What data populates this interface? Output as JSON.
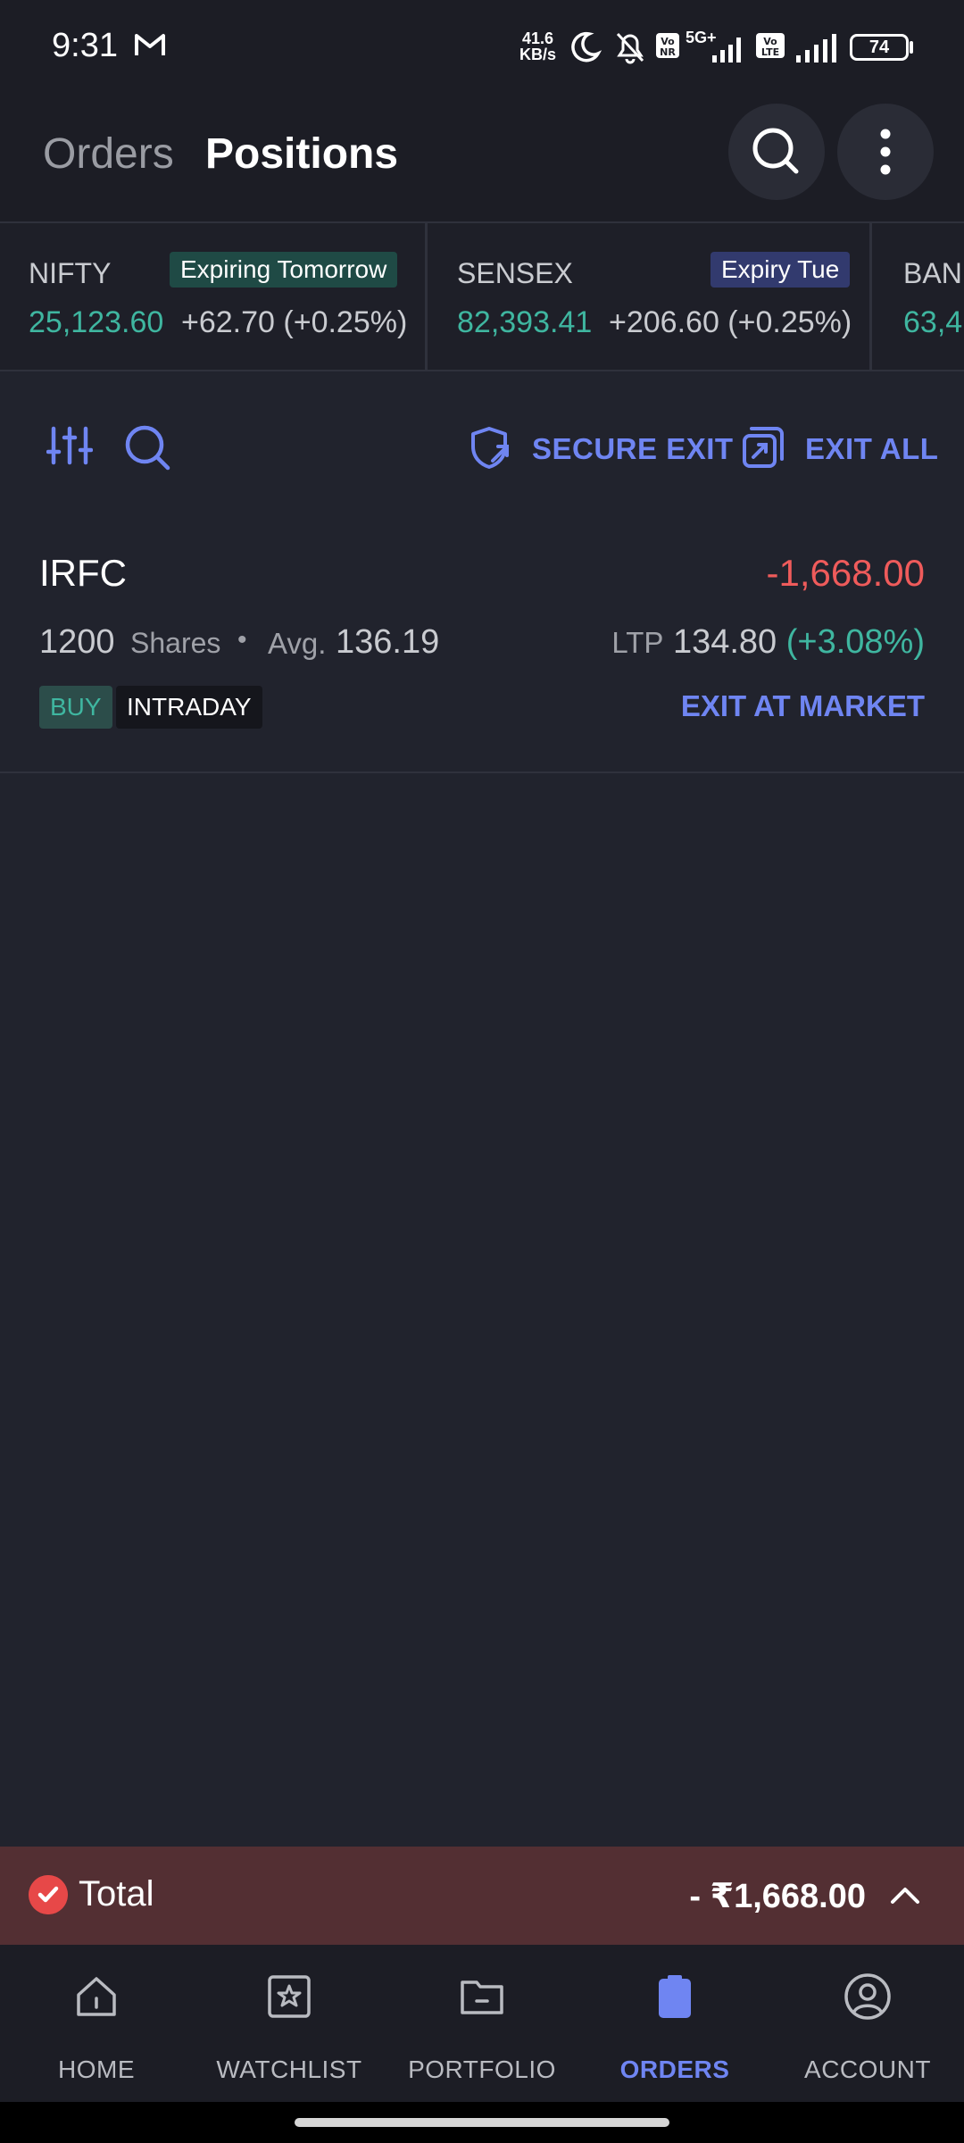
{
  "status_bar": {
    "time": "9:31",
    "net_speed_value": "41.6",
    "net_speed_unit": "KB/s",
    "network_5g": "5G+",
    "battery": "74"
  },
  "header": {
    "tabs": [
      {
        "label": "Orders",
        "active": false
      },
      {
        "label": "Positions",
        "active": true
      }
    ]
  },
  "indices": [
    {
      "name": "NIFTY",
      "badge": "Expiring Tomorrow",
      "badge_color": "#1f4a45",
      "value": "25,123.60",
      "change": "+62.70 (+0.25%)"
    },
    {
      "name": "SENSEX",
      "badge": "Expiry Tue",
      "badge_color": "#323a6e",
      "value": "82,393.41",
      "change": "+206.60 (+0.25%)"
    },
    {
      "name": "BAN",
      "value": "63,4"
    }
  ],
  "toolbar": {
    "secure_exit": "SECURE EXIT",
    "exit_all": "EXIT ALL"
  },
  "position": {
    "symbol": "IRFC",
    "pnl": "-1,668.00",
    "qty": "1200",
    "qty_unit": "Shares",
    "separator": "•",
    "avg_label": "Avg.",
    "avg_price": "136.19",
    "ltp_label": "LTP",
    "ltp": "134.80",
    "ltp_change": "(+3.08%)",
    "side": "BUY",
    "product": "INTRADAY",
    "exit_action": "EXIT AT MARKET"
  },
  "total": {
    "label": "Total",
    "value": "- ₹1,668.00"
  },
  "bottom_nav": [
    {
      "label": "HOME",
      "icon": "home-icon"
    },
    {
      "label": "WATCHLIST",
      "icon": "star-icon"
    },
    {
      "label": "PORTFOLIO",
      "icon": "folder-icon"
    },
    {
      "label": "ORDERS",
      "icon": "clipboard-icon",
      "active": true
    },
    {
      "label": "ACCOUNT",
      "icon": "account-icon"
    }
  ],
  "colors": {
    "accent": "#6f85f2",
    "profit": "#3fb6a0",
    "loss": "#ef5b5b"
  }
}
